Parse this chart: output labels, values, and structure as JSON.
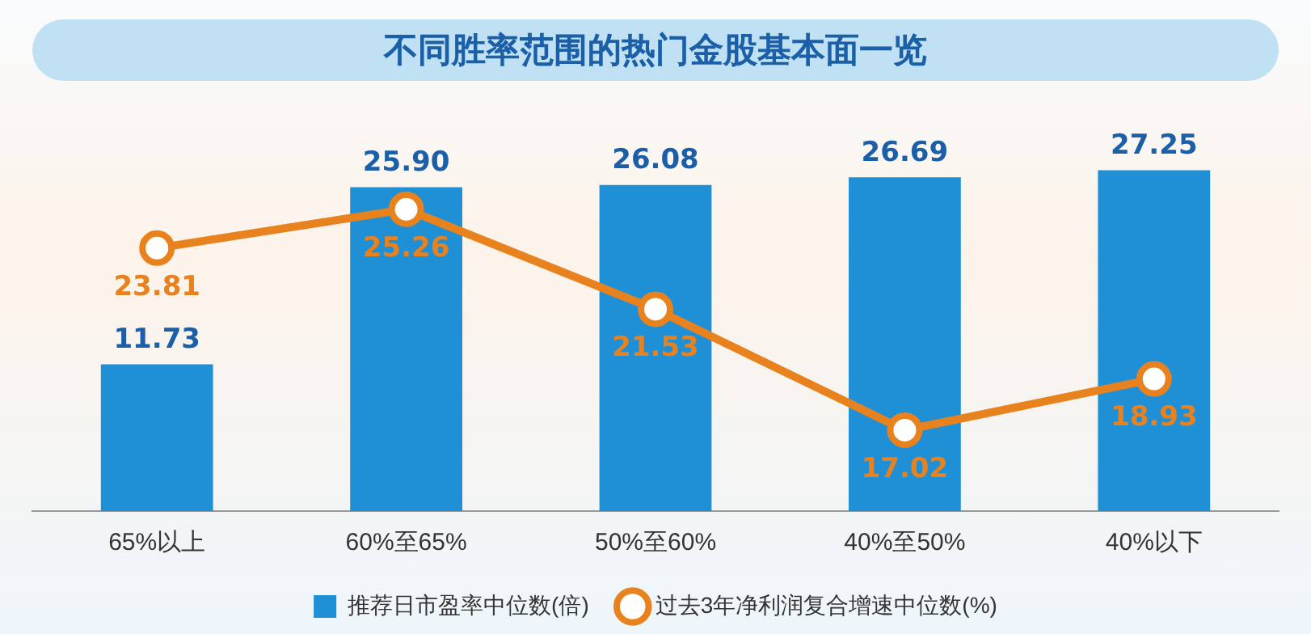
{
  "chart_data": {
    "type": "bar",
    "title": "不同胜率范围的热门金股基本面一览",
    "categories": [
      "65%以上",
      "60%至65%",
      "50%至60%",
      "40%至50%",
      "40%以下"
    ],
    "series": [
      {
        "name": "推荐日市盈率中位数(倍)",
        "color": "#1f8fd6",
        "values": [
          11.73,
          25.9,
          26.08,
          26.69,
          27.25
        ],
        "value_labels": [
          "11.73",
          "25.90",
          "26.08",
          "26.69",
          "27.25"
        ]
      },
      {
        "name": "过去3年净利润复合增速中位数(%)",
        "type": "line",
        "axis": "y2",
        "color": "#e8821e",
        "values": [
          23.81,
          25.26,
          21.53,
          17.02,
          18.93
        ],
        "value_labels": [
          "23.81",
          "25.26",
          "21.53",
          "17.02",
          "18.93"
        ]
      }
    ],
    "legend": "bottom",
    "marker": "circle",
    "line_style": "solid",
    "grid": false,
    "tick_labels": "x"
  }
}
